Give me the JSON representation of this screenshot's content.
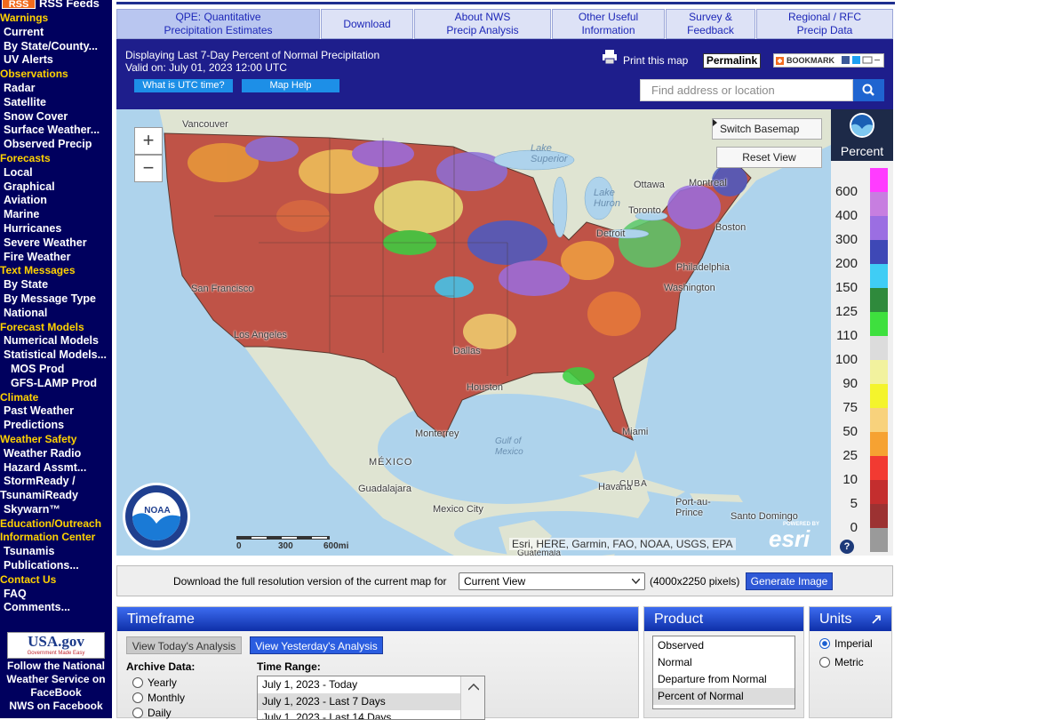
{
  "sidebar": {
    "rss_badge": "RSS",
    "rss_label": "RSS Feeds",
    "menu": [
      {
        "heading": "Warnings"
      },
      {
        "link": "Current"
      },
      {
        "link": "By State/County..."
      },
      {
        "link": "UV Alerts"
      },
      {
        "heading": "Observations"
      },
      {
        "link": "Radar"
      },
      {
        "link": "Satellite"
      },
      {
        "link": "Snow Cover"
      },
      {
        "link": "Surface Weather..."
      },
      {
        "link": "Observed Precip"
      },
      {
        "heading": "Forecasts"
      },
      {
        "link": "Local"
      },
      {
        "link": "Graphical"
      },
      {
        "link": "Aviation"
      },
      {
        "link": "Marine"
      },
      {
        "link": "Hurricanes"
      },
      {
        "link": "Severe Weather"
      },
      {
        "link": "Fire Weather"
      },
      {
        "heading": "Text Messages"
      },
      {
        "link": "By State"
      },
      {
        "link": "By Message Type"
      },
      {
        "link": "National"
      },
      {
        "heading": "Forecast Models"
      },
      {
        "link": "Numerical Models"
      },
      {
        "link": "Statistical Models..."
      },
      {
        "sublink": "MOS Prod"
      },
      {
        "sublink": "GFS-LAMP Prod"
      },
      {
        "heading": "Climate"
      },
      {
        "link": "Past Weather"
      },
      {
        "link": "Predictions"
      },
      {
        "heading": "Weather Safety"
      },
      {
        "link": "Weather Radio"
      },
      {
        "link": "Hazard Assmt..."
      },
      {
        "link": "StormReady / TsunamiReady"
      },
      {
        "link": "Skywarn™"
      },
      {
        "heading": "Education/Outreach"
      },
      {
        "heading": "Information Center"
      },
      {
        "link": "Tsunamis"
      },
      {
        "link": "Publications..."
      },
      {
        "heading": "Contact Us"
      },
      {
        "link": "FAQ"
      },
      {
        "link": "Comments..."
      }
    ],
    "usagov": "USA.gov",
    "usagov_tagline": "Government Made Easy",
    "follow": "Follow the National Weather Service on FaceBook",
    "facebook": "NWS on Facebook"
  },
  "tabs": [
    "QPE: Quantitative\nPrecipitation Estimates",
    "Download",
    "About NWS\nPrecip Analysis",
    "Other Useful\nInformation",
    "Survey &\nFeedback",
    "Regional / RFC\nPrecip Data"
  ],
  "header": {
    "title": "Displaying Last 7-Day Percent of Normal Precipitation",
    "valid": "Valid on: July 01, 2023 12:00 UTC",
    "utc_button": "What is UTC time?",
    "help_button": "Map Help",
    "print": "Print this map",
    "permalink": "Permalink",
    "bookmark": "BOOKMARK",
    "search_placeholder": "Find address or location"
  },
  "map": {
    "zoom_in": "+",
    "zoom_out": "−",
    "switch_basemap": "Switch Basemap",
    "reset_view": "Reset View",
    "labels": [
      "Vancouver",
      "Lake\nSuperior",
      "Lake\nHuron",
      "Ottawa",
      "Montreal",
      "Toronto",
      "Detroit",
      "Boston",
      "Philadelphia",
      "Washington",
      "San Francisco",
      "Los Angeles",
      "Dallas",
      "Houston",
      "Monterrey",
      "Miami",
      "Gulf of\nMexico",
      "MÉXICO",
      "Havana",
      "CUBA",
      "Guadalajara",
      "Mexico City",
      "Port-au-\nPrince",
      "Santo Domingo",
      "Guatemala"
    ],
    "scale": [
      "0",
      "300",
      "600mi"
    ],
    "attribution": "Esri, HERE, Garmin, FAO, NOAA, USGS, EPA",
    "esri_powered": "POWERED BY",
    "esri": "esri",
    "noaa": "NOAA"
  },
  "legend": {
    "title": "Percent",
    "values": [
      600,
      400,
      300,
      200,
      150,
      125,
      110,
      100,
      90,
      75,
      50,
      25,
      10,
      5,
      0
    ],
    "help": "?"
  },
  "download_bar": {
    "text": "Download the full resolution version of the current map for",
    "selected": "Current View",
    "size": "(4000x2250 pixels)",
    "button": "Generate Image"
  },
  "timeframe": {
    "title": "Timeframe",
    "today_button": "View Today's Analysis",
    "yesterday_button": "View Yesterday's Analysis",
    "archive_label": "Archive Data:",
    "archive_options": [
      "Yearly",
      "Monthly",
      "Daily"
    ],
    "range_label": "Time Range:",
    "range_options": [
      "July 1, 2023 - Today",
      "July 1, 2023 - Last 7 Days",
      "July 1, 2023 - Last 14 Days"
    ]
  },
  "product": {
    "title": "Product",
    "options": [
      "Observed",
      "Normal",
      "Departure from Normal",
      "Percent of Normal"
    ]
  },
  "units": {
    "title": "Units",
    "options": [
      "Imperial",
      "Metric"
    ]
  }
}
